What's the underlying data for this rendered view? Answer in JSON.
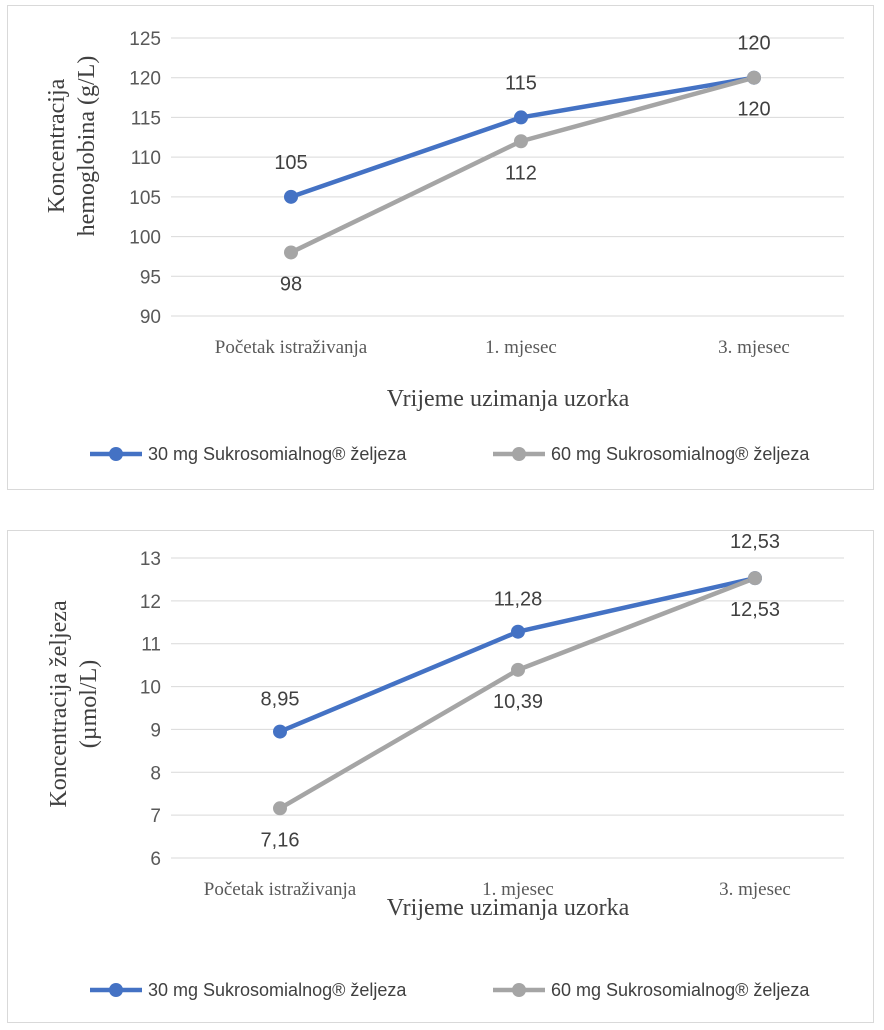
{
  "chart_data": [
    {
      "type": "line",
      "categories": [
        "Početak istraživanja",
        "1. mjesec",
        "3. mjesec"
      ],
      "series": [
        {
          "name": "30 mg Sukrosomialnog® željeza",
          "values": [
            105,
            115,
            120
          ],
          "color": "#4472c4"
        },
        {
          "name": "60 mg Sukrosomialnog® željeza",
          "values": [
            98,
            112,
            120
          ],
          "color": "#a5a5a5"
        }
      ],
      "ylim": [
        90,
        125
      ],
      "yticks": [
        "125",
        "120",
        "115",
        "110",
        "105",
        "100",
        "95",
        "90"
      ],
      "ytick_values": [
        125,
        120,
        115,
        110,
        105,
        100,
        95,
        90
      ],
      "ylabel_line1": "Koncentracija",
      "ylabel_line2": "hemoglobina (g/L)",
      "xlabel": "Vrijeme uzimanja uzorka",
      "data_labels": [
        [
          "105",
          "115",
          "120"
        ],
        [
          "98",
          "112",
          "120"
        ]
      ],
      "grid": true,
      "legend": "bottom"
    },
    {
      "type": "line",
      "categories": [
        "Početak istraživanja",
        "1. mjesec",
        "3. mjesec"
      ],
      "series": [
        {
          "name": "30 mg Sukrosomialnog® željeza",
          "values": [
            8.95,
            11.28,
            12.53
          ],
          "color": "#4472c4"
        },
        {
          "name": "60 mg Sukrosomialnog® željeza",
          "values": [
            7.16,
            10.39,
            12.53
          ],
          "color": "#a5a5a5"
        }
      ],
      "ylim": [
        6,
        13
      ],
      "yticks": [
        "13",
        "12",
        "11",
        "10",
        "9",
        "8",
        "7",
        "6"
      ],
      "ytick_values": [
        13,
        12,
        11,
        10,
        9,
        8,
        7,
        6
      ],
      "ylabel_line1": "Koncentracija željeza",
      "ylabel_line2": "(µmol/L)",
      "xlabel": "Vrijeme uzimanja uzorka",
      "data_labels": [
        [
          "8,95",
          "11,28",
          "12,53"
        ],
        [
          "7,16",
          "10,39",
          "12,53"
        ]
      ],
      "grid": true,
      "legend": "bottom"
    }
  ]
}
